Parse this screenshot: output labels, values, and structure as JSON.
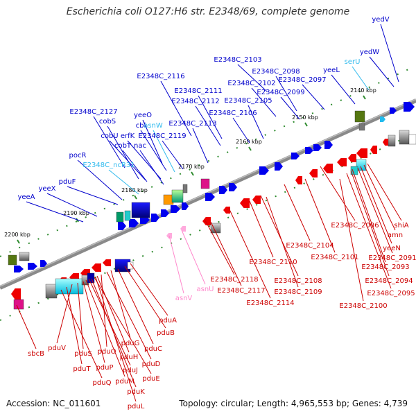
{
  "title": "Escherichia coli O127:H6 str. E2348/69, complete genome",
  "footer": {
    "accession": "Accession: NC_011601",
    "topology": "Topology: circular; Length: 4,965,553 bp; Genes: 4,739"
  },
  "colors": {
    "backbone": "#808080",
    "forward_label": "#0000cc",
    "reverse_label": "#cc0000",
    "rna_forward_label": "#33bbee",
    "rna_reverse_label": "#ff88cc",
    "tick": "#228b22"
  },
  "ticks": [
    "2140 kbp",
    "2150 kbp",
    "2160 kbp",
    "2170 kbp",
    "2180 kbp",
    "2190 kbp",
    "2200 kbp"
  ],
  "labels_top": [
    "yedV",
    "yedW",
    "serU",
    "yeeL",
    "E2348C_2103",
    "E2348C_2098",
    "E2348C_2097",
    "E2348C_2102",
    "E2348C_2099",
    "E2348C_2116",
    "E2348C_2111",
    "E2348C_2105",
    "E2348C_2112",
    "E2348C_2106",
    "yeeO",
    "E2348C_2127",
    "cbl",
    "asnW",
    "cobS",
    "E2348C_2113",
    "cobU",
    "erfK",
    "E2348C_2119",
    "cobT",
    "nac",
    "pocR",
    "E2348C_ncR31",
    "pduF",
    "yeeX",
    "yeeA"
  ],
  "labels_bottom": [
    "E2348C_2096",
    "shiA",
    "amn",
    "yeeN",
    "E2348C_2091",
    "E2348C_2093",
    "E2348C_2094",
    "E2348C_2095",
    "E2348C_2100",
    "E2348C_2104",
    "E2348C_2101",
    "E2348C_2110",
    "E2348C_2118",
    "E2348C_2117",
    "E2348C_2108",
    "E2348C_2109",
    "E2348C_2114",
    "asnU",
    "asnV",
    "pduA",
    "pduB",
    "pduC",
    "pduG",
    "pduD",
    "pduO",
    "pduH",
    "pduE",
    "pduV",
    "pduS",
    "pduJ",
    "pduP",
    "pduT",
    "pduM",
    "pduQ",
    "pduK",
    "sbcB",
    "pduL"
  ]
}
